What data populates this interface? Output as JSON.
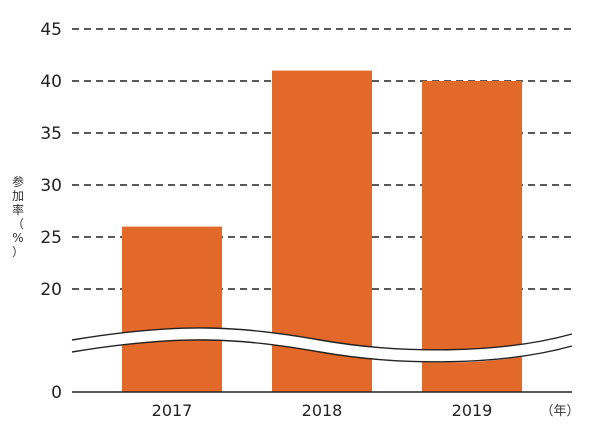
{
  "chart_data": {
    "type": "bar",
    "categories": [
      "2017",
      "2018",
      "2019"
    ],
    "values": [
      26,
      41,
      40
    ],
    "ylabel": "参加率（%）",
    "xunit": "（年）",
    "y_ticks": [
      "45",
      "40",
      "35",
      "30",
      "25",
      "20",
      "0"
    ],
    "axis_break": "between 0 and 20",
    "grid": "dashed horizontal",
    "colors": {
      "bar": "#E3692A",
      "grid": "#222222",
      "axis": "#222222"
    }
  }
}
